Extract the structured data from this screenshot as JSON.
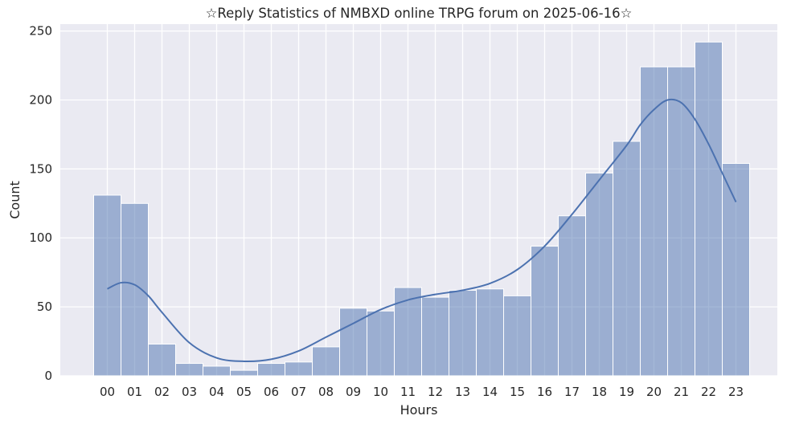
{
  "chart_data": {
    "type": "bar",
    "title": "☆Reply Statistics of NMBXD online TRPG forum on 2025-06-16☆",
    "xlabel": "Hours",
    "ylabel": "Count",
    "categories": [
      "00",
      "01",
      "02",
      "03",
      "04",
      "05",
      "06",
      "07",
      "08",
      "09",
      "10",
      "11",
      "12",
      "13",
      "14",
      "15",
      "16",
      "17",
      "18",
      "19",
      "20",
      "21",
      "22",
      "23"
    ],
    "values": [
      131,
      125,
      23,
      9,
      7,
      4,
      9,
      10,
      21,
      49,
      47,
      64,
      57,
      62,
      63,
      58,
      94,
      116,
      147,
      170,
      224,
      224,
      242,
      154
    ],
    "ylim": [
      0,
      255
    ],
    "yticks": [
      0,
      50,
      100,
      150,
      200,
      250
    ],
    "grid": true,
    "kde": {
      "x": [
        0,
        0.5,
        1,
        1.5,
        2,
        3,
        4,
        5,
        6,
        7,
        8,
        9,
        10,
        11,
        12,
        13,
        14,
        15,
        16,
        17,
        18,
        19,
        19.5,
        20,
        20.5,
        21,
        21.5,
        22,
        22.5,
        23
      ],
      "y": [
        63,
        67.5,
        66,
        58,
        46,
        24,
        13,
        10.5,
        12,
        18,
        28,
        38,
        48,
        55,
        59,
        62,
        67,
        77,
        94,
        117,
        142,
        167,
        182,
        193,
        200,
        198,
        186,
        168,
        147,
        126
      ]
    },
    "colors": {
      "background": "#eaeaf2",
      "grid": "#ffffff",
      "bar_fill": "#4c72b0",
      "bar_opacity": 0.5,
      "line": "#4c72b0"
    }
  }
}
